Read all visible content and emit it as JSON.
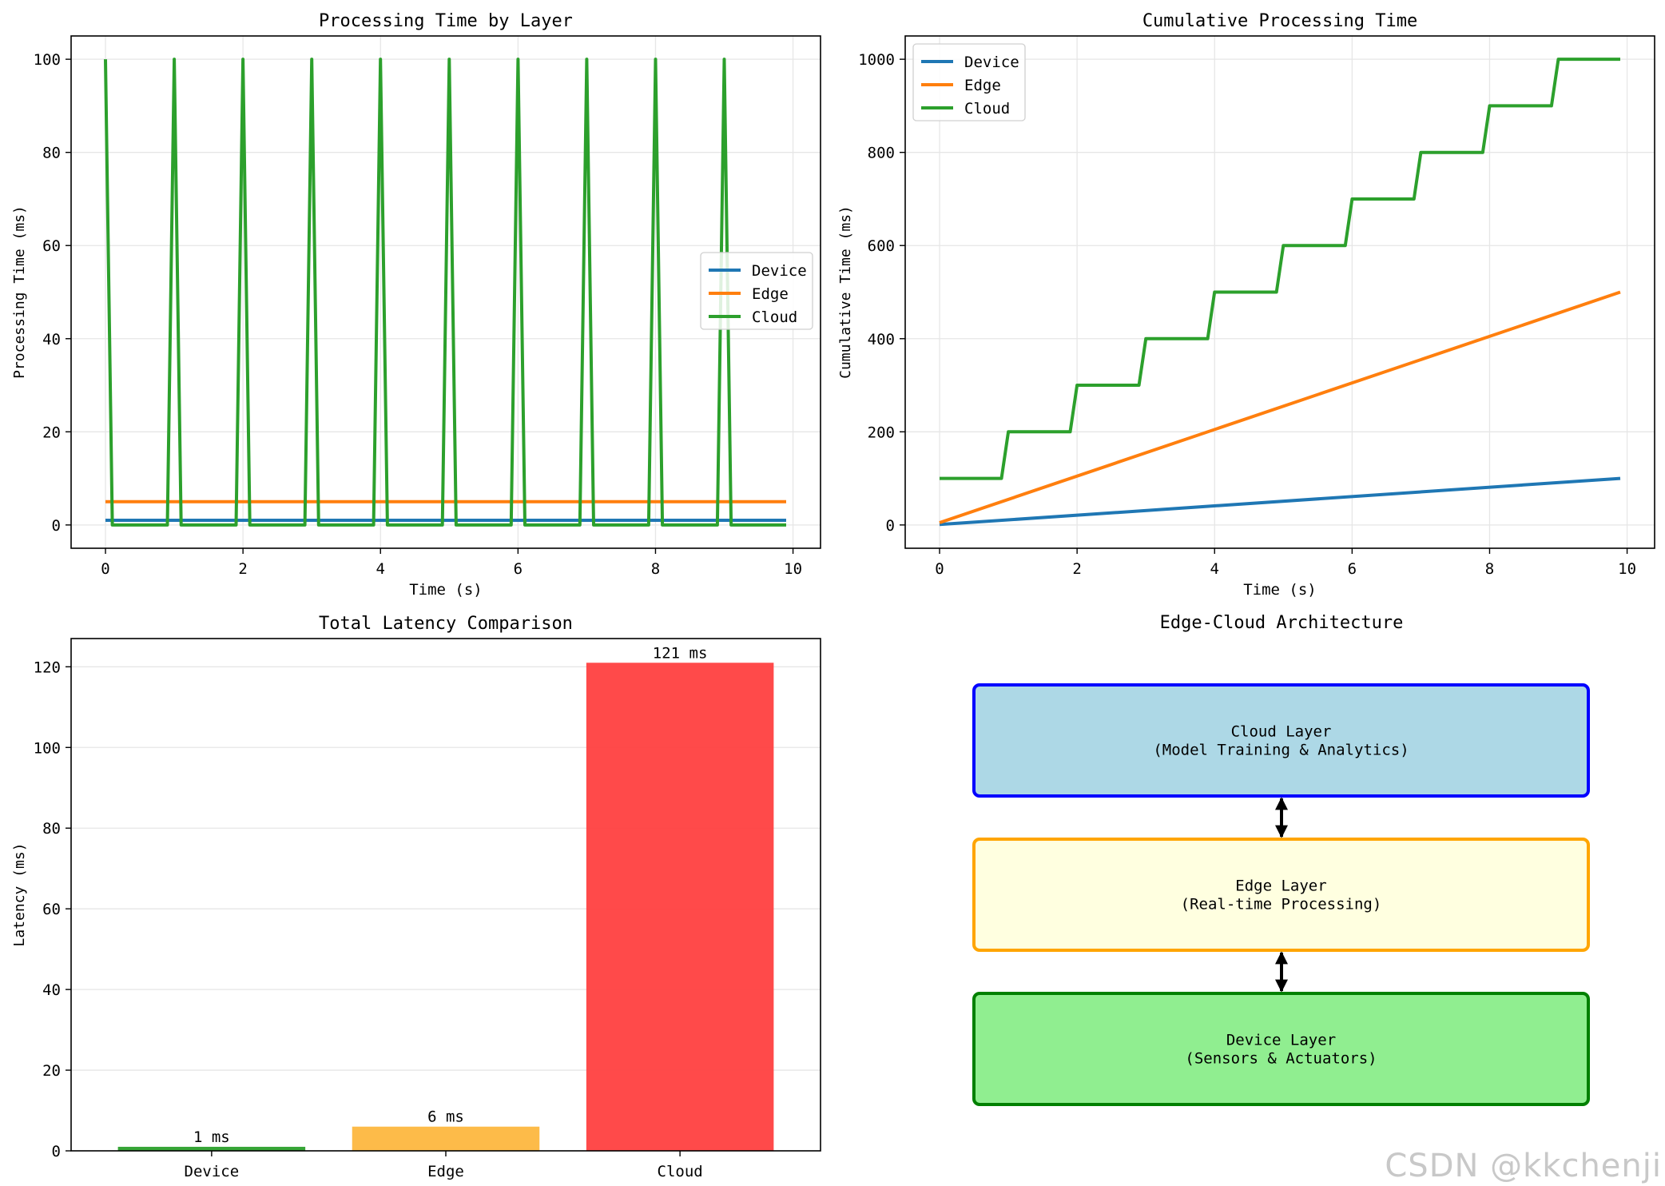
{
  "watermark": "CSDN @kkchenji",
  "colors": {
    "device": "#1f77b4",
    "edge": "#ff7f0e",
    "cloud": "#2ca02c",
    "grid": "#e6e6e6"
  },
  "chart_data": [
    {
      "type": "line",
      "title": "Processing Time by Layer",
      "xlabel": "Time (s)",
      "ylabel": "Processing Time (ms)",
      "xlim": [
        -0.5,
        10.4
      ],
      "ylim": [
        -5,
        105
      ],
      "xticks": [
        0,
        2,
        4,
        6,
        8,
        10
      ],
      "yticks": [
        0,
        20,
        40,
        60,
        80,
        100
      ],
      "grid": true,
      "legend": "center-right",
      "series": [
        {
          "name": "Device",
          "color": "#1f77b4",
          "x": [
            0,
            9.9
          ],
          "y": [
            1,
            1
          ]
        },
        {
          "name": "Edge",
          "color": "#ff7f0e",
          "x": [
            0,
            9.9
          ],
          "y": [
            5,
            5
          ]
        },
        {
          "name": "Cloud",
          "color": "#2ca02c",
          "x": [
            0,
            0.1,
            0.9,
            1,
            1.1,
            1.9,
            2,
            2.1,
            2.9,
            3,
            3.1,
            3.9,
            4,
            4.1,
            4.9,
            5,
            5.1,
            5.9,
            6,
            6.1,
            6.9,
            7,
            7.1,
            7.9,
            8,
            8.1,
            8.9,
            9,
            9.1,
            9.9
          ],
          "y": [
            100,
            0,
            0,
            100,
            0,
            0,
            100,
            0,
            0,
            100,
            0,
            0,
            100,
            0,
            0,
            100,
            0,
            0,
            100,
            0,
            0,
            100,
            0,
            0,
            100,
            0,
            0,
            100,
            0,
            0
          ]
        }
      ]
    },
    {
      "type": "line",
      "title": "Cumulative Processing Time",
      "xlabel": "Time (s)",
      "ylabel": "Cumulative Time (ms)",
      "xlim": [
        -0.5,
        10.4
      ],
      "ylim": [
        -50,
        1050
      ],
      "xticks": [
        0,
        2,
        4,
        6,
        8,
        10
      ],
      "yticks": [
        0,
        200,
        400,
        600,
        800,
        1000
      ],
      "grid": true,
      "legend": "top-left",
      "series": [
        {
          "name": "Device",
          "color": "#1f77b4",
          "x": [
            0,
            9.9
          ],
          "y": [
            1,
            100
          ]
        },
        {
          "name": "Edge",
          "color": "#ff7f0e",
          "x": [
            0,
            9.9
          ],
          "y": [
            5,
            500
          ]
        },
        {
          "name": "Cloud",
          "color": "#2ca02c",
          "x": [
            0,
            0.9,
            1,
            1.9,
            2,
            2.9,
            3,
            3.9,
            4,
            4.9,
            5,
            5.9,
            6,
            6.9,
            7,
            7.9,
            8,
            8.9,
            9,
            9.9
          ],
          "y": [
            100,
            100,
            200,
            200,
            300,
            300,
            400,
            400,
            500,
            500,
            600,
            600,
            700,
            700,
            800,
            800,
            900,
            900,
            1000,
            1000
          ]
        }
      ]
    },
    {
      "type": "bar",
      "title": "Total Latency Comparison",
      "xlabel": "",
      "ylabel": "Latency (ms)",
      "categories": [
        "Device",
        "Edge",
        "Cloud"
      ],
      "values": [
        1,
        6,
        121
      ],
      "value_labels": [
        "1 ms",
        "6 ms",
        "121 ms"
      ],
      "bar_colors": [
        "#2ca02c",
        "#fdb73f",
        "#ff4040"
      ],
      "ylim": [
        0,
        127
      ],
      "yticks": [
        0,
        20,
        40,
        60,
        80,
        100,
        120
      ],
      "grid": true
    }
  ],
  "architecture": {
    "title": "Edge-Cloud Architecture",
    "layers": [
      {
        "name": "Cloud Layer",
        "desc": "(Model Training & Analytics)",
        "fill": "#add8e6",
        "stroke": "#0000ff"
      },
      {
        "name": "Edge Layer",
        "desc": "(Real-time Processing)",
        "fill": "#ffffe0",
        "stroke": "#ffa500"
      },
      {
        "name": "Device Layer",
        "desc": "(Sensors & Actuators)",
        "fill": "#90ee90",
        "stroke": "#008000"
      }
    ]
  }
}
